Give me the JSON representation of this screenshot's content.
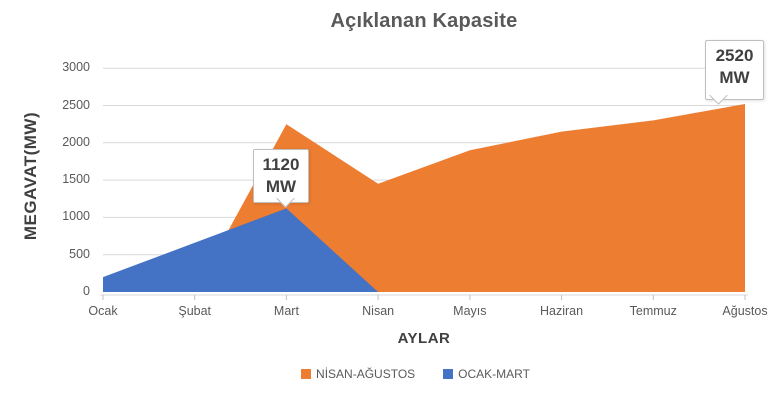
{
  "chart_data": {
    "type": "area",
    "title": "Açıklanan Kapasite",
    "xlabel": "AYLAR",
    "ylabel": "MEGAVAT(MW)",
    "categories": [
      "Ocak",
      "Şubat",
      "Mart",
      "Nisan",
      "Mayıs",
      "Haziran",
      "Temmuz",
      "Ağustos"
    ],
    "series": [
      {
        "name": "NİSAN-AĞUSTOS",
        "color": "#ED7D31",
        "values": [
          null,
          0,
          2250,
          1450,
          1900,
          2150,
          2300,
          2520
        ]
      },
      {
        "name": "OCAK-MART",
        "color": "#4472C4",
        "values": [
          200,
          660,
          1120,
          0,
          null,
          null,
          null,
          null
        ]
      }
    ],
    "ylim": [
      0,
      3000
    ],
    "ytick_step": 500,
    "grid": true,
    "legend_position": "bottom",
    "annotations": [
      {
        "value": "1120",
        "unit": "MW",
        "category": "Mart",
        "series": "OCAK-MART"
      },
      {
        "value": "2520",
        "unit": "MW",
        "category": "Ağustos",
        "series": "NİSAN-AĞUSTOS"
      }
    ],
    "colors": {
      "gridline": "#D9D9D9",
      "axis_line": "#D9D9D9",
      "tick": "#BFBFBF",
      "text": "#595959",
      "bold_text": "#3f3f3f"
    }
  }
}
